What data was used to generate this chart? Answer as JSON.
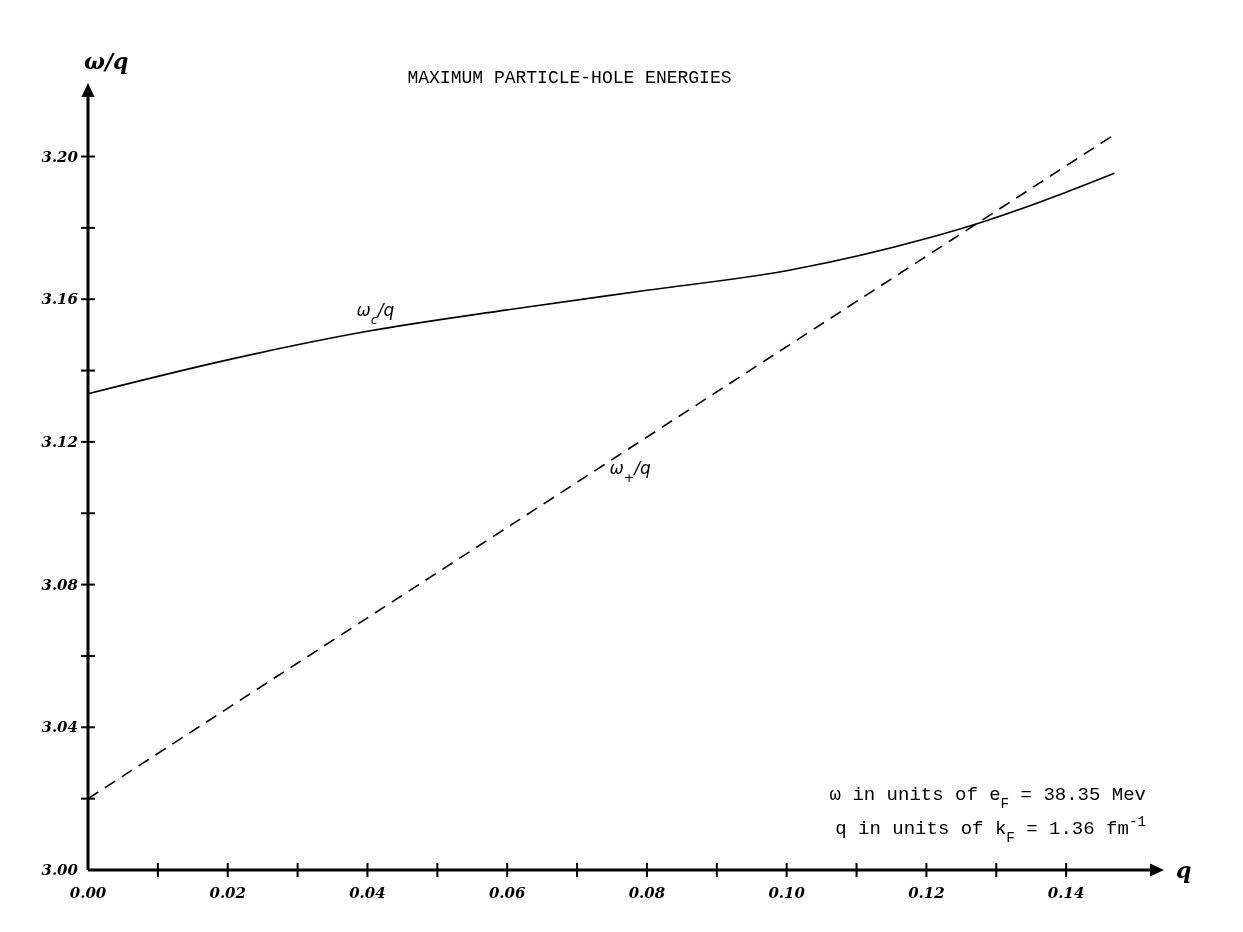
{
  "chart_data": {
    "type": "line",
    "title": "MAXIMUM PARTICLE-HOLE ENERGIES",
    "xlabel": "q",
    "ylabel": "ω/q",
    "xlim": [
      0,
      0.15
    ],
    "ylim": [
      3.0,
      3.215
    ],
    "xticks": [
      {
        "value": 0,
        "label": "0.00"
      },
      {
        "value": 0.01,
        "label": null
      },
      {
        "value": 0.02,
        "label": "0.02"
      },
      {
        "value": 0.03,
        "label": null
      },
      {
        "value": 0.04,
        "label": "0.04"
      },
      {
        "value": 0.05,
        "label": null
      },
      {
        "value": 0.06,
        "label": "0.06"
      },
      {
        "value": 0.07,
        "label": null
      },
      {
        "value": 0.08,
        "label": "0.08"
      },
      {
        "value": 0.09,
        "label": null
      },
      {
        "value": 0.1,
        "label": "0.10"
      },
      {
        "value": 0.11,
        "label": null
      },
      {
        "value": 0.12,
        "label": "0.12"
      },
      {
        "value": 0.13,
        "label": null
      },
      {
        "value": 0.14,
        "label": "0.14"
      }
    ],
    "yticks": [
      {
        "value": 3.0,
        "label": "3.00"
      },
      {
        "value": 3.02,
        "label": null
      },
      {
        "value": 3.04,
        "label": "3.04"
      },
      {
        "value": 3.06,
        "label": null
      },
      {
        "value": 3.08,
        "label": "3.08"
      },
      {
        "value": 3.1,
        "label": null
      },
      {
        "value": 3.12,
        "label": "3.12"
      },
      {
        "value": 3.14,
        "label": null
      },
      {
        "value": 3.16,
        "label": "3.16"
      },
      {
        "value": 3.18,
        "label": null
      },
      {
        "value": 3.2,
        "label": "3.20"
      }
    ],
    "series": [
      {
        "name": "ω$_{c}$/q",
        "color": "#000000",
        "line_style": "solid",
        "x": [
          0,
          0.02,
          0.04,
          0.06,
          0.08,
          0.1,
          0.12,
          0.1286,
          0.14,
          0.1469
        ],
        "values": [
          3.1335,
          3.143,
          3.151,
          3.157,
          3.1625,
          3.168,
          3.177,
          3.182,
          3.19,
          3.1953
        ]
      },
      {
        "name": "ω$_{+}$/q",
        "color": "#000000",
        "line_style": "dashed",
        "x": [
          0,
          0.1464
        ],
        "values": [
          3.02,
          3.2055
        ]
      }
    ],
    "annotations": [
      "ω in units of e$_{F}$ = 38.35 Mev",
      "q in units of k$_{F}$ = 1.36 fm$^{-1}$"
    ]
  }
}
